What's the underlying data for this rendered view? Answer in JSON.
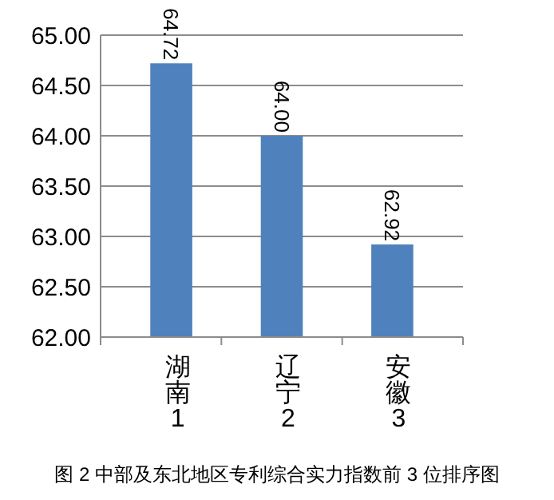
{
  "chart_data": {
    "type": "bar",
    "title": "图 2 中部及东北地区专利综合实力指数前 3 位排序图",
    "categories": [
      "湖南1",
      "辽宁2",
      "安徽3"
    ],
    "values": [
      64.72,
      64.0,
      62.92
    ],
    "color": "#4f81bd",
    "ylim": [
      62,
      65
    ],
    "yticks": [
      {
        "value": 62,
        "label": "62.00"
      },
      {
        "value": 62.5,
        "label": "62.50"
      },
      {
        "value": 63,
        "label": "63.00"
      },
      {
        "value": 63.5,
        "label": "63.50"
      },
      {
        "value": 64,
        "label": "64.00"
      },
      {
        "value": 64.5,
        "label": "64.50"
      },
      {
        "value": 65,
        "label": "65.00"
      }
    ],
    "value_labels": [
      "64.72",
      "64.00",
      "62.92"
    ],
    "grid": "y"
  }
}
